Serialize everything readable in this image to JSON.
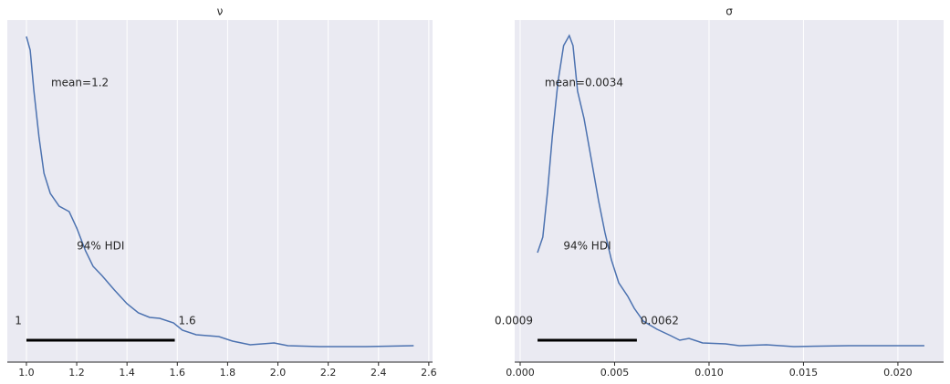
{
  "chart_data": [
    {
      "type": "line",
      "title": "ν",
      "color": "#4c72b0",
      "grid": true,
      "x": [
        1.0,
        1.015,
        1.03,
        1.05,
        1.07,
        1.095,
        1.13,
        1.17,
        1.2,
        1.235,
        1.265,
        1.3,
        1.35,
        1.4,
        1.445,
        1.49,
        1.53,
        1.585,
        1.62,
        1.675,
        1.765,
        1.82,
        1.89,
        1.985,
        2.04,
        2.165,
        2.35,
        2.54
      ],
      "values": [
        3.41,
        3.26,
        2.81,
        2.31,
        1.91,
        1.69,
        1.55,
        1.49,
        1.31,
        1.06,
        0.89,
        0.79,
        0.63,
        0.48,
        0.38,
        0.33,
        0.32,
        0.27,
        0.19,
        0.14,
        0.12,
        0.07,
        0.03,
        0.05,
        0.02,
        0.01,
        0.01,
        0.02
      ],
      "xlim": [
        0.924,
        2.615
      ],
      "ylim": [
        -0.16,
        3.59
      ],
      "xticks": [
        {
          "value": 1.0,
          "label": "1.0"
        },
        1.2,
        1.4,
        1.6,
        1.8,
        {
          "value": 2.0,
          "label": "2.0"
        },
        2.2,
        2.4,
        2.6
      ],
      "mean_text": "mean=1.2",
      "hdi_text": "94% HDI",
      "hdi": [
        1.0,
        1.59
      ],
      "hdi_labels": [
        "1",
        "1.6"
      ]
    },
    {
      "type": "line",
      "title": "σ",
      "color": "#4c72b0",
      "grid": true,
      "x": [
        0.00092,
        0.0012,
        0.00145,
        0.0017,
        0.002,
        0.0023,
        0.0026,
        0.0028,
        0.00304,
        0.00338,
        0.00377,
        0.00415,
        0.00449,
        0.00483,
        0.00522,
        0.0057,
        0.00604,
        0.00652,
        0.00725,
        0.00797,
        0.00845,
        0.00894,
        0.00966,
        0.01087,
        0.0116,
        0.01304,
        0.01449,
        0.01739,
        0.0214
      ],
      "values": [
        104,
        121,
        171,
        231,
        291,
        331,
        342,
        331,
        281,
        251,
        206,
        161,
        126,
        96,
        71,
        56,
        43,
        29,
        20,
        13,
        8,
        10,
        5,
        4,
        2,
        3,
        1,
        2,
        2
      ],
      "xlim": [
        -0.00029,
        0.02242
      ],
      "ylim": [
        -16,
        359
      ],
      "xticks": [
        {
          "value": 0,
          "label": "0.000"
        },
        0.005,
        {
          "value": 0.01,
          "label": "0.010"
        },
        0.015,
        {
          "value": 0.02,
          "label": "0.020"
        }
      ],
      "mean_text": "mean=0.0034",
      "hdi_text": "94% HDI",
      "hdi": [
        0.00092,
        0.00618
      ],
      "hdi_labels": [
        "0.0009",
        "0.0062"
      ]
    }
  ]
}
